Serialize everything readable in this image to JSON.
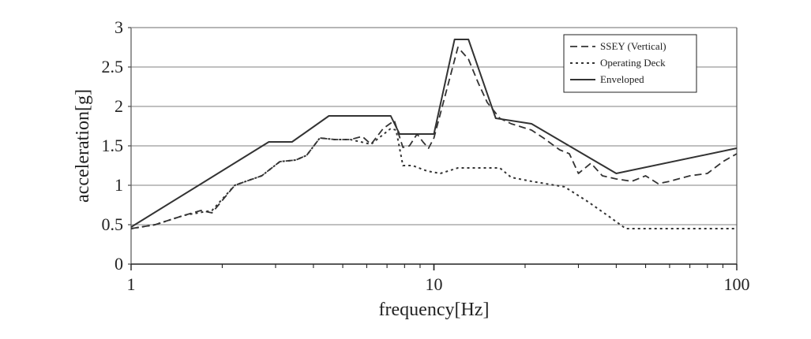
{
  "chart_data": {
    "type": "line",
    "xlabel": "frequency[Hz]",
    "ylabel": "acceleration[g]",
    "x_scale": "log",
    "xlim": [
      1,
      100
    ],
    "ylim": [
      0,
      3
    ],
    "x_ticks": [
      "1",
      "10",
      "100"
    ],
    "y_ticks": [
      "0",
      "0.5",
      "1",
      "1.5",
      "2",
      "2.5",
      "3"
    ],
    "grid": "horizontal",
    "legend_position": "top-right",
    "series": [
      {
        "name": "SSEY (Vertical)",
        "style": "dashed",
        "x": [
          1,
          1.2,
          1.5,
          1.7,
          1.85,
          2.2,
          2.7,
          3.1,
          3.5,
          3.8,
          4.2,
          4.7,
          5.3,
          5.8,
          6.2,
          6.8,
          7.4,
          7.9,
          8.3,
          8.8,
          9.2,
          9.6,
          10,
          11,
          12,
          13,
          14,
          15,
          16.5,
          18,
          21,
          23,
          26,
          28,
          30,
          33,
          36,
          40,
          45,
          50,
          55,
          60,
          70,
          80,
          90,
          100
        ],
        "y": [
          0.45,
          0.5,
          0.62,
          0.68,
          0.65,
          1.0,
          1.12,
          1.3,
          1.32,
          1.38,
          1.6,
          1.58,
          1.58,
          1.62,
          1.52,
          1.72,
          1.82,
          1.48,
          1.5,
          1.65,
          1.55,
          1.47,
          1.6,
          2.2,
          2.75,
          2.6,
          2.3,
          2.05,
          1.85,
          1.78,
          1.7,
          1.6,
          1.45,
          1.4,
          1.15,
          1.28,
          1.12,
          1.08,
          1.05,
          1.12,
          1.02,
          1.05,
          1.12,
          1.15,
          1.3,
          1.4
        ]
      },
      {
        "name": "Operating Deck",
        "style": "dotted",
        "x": [
          1,
          1.2,
          1.5,
          1.85,
          2.2,
          2.7,
          3.1,
          3.5,
          3.8,
          4.2,
          4.7,
          5.3,
          6.2,
          7.2,
          7.5,
          7.9,
          8.5,
          9.5,
          10.5,
          12,
          14,
          16.5,
          18,
          21,
          27,
          32,
          38,
          43,
          50,
          70,
          100
        ],
        "y": [
          0.45,
          0.5,
          0.62,
          0.68,
          1.0,
          1.12,
          1.3,
          1.32,
          1.38,
          1.6,
          1.58,
          1.58,
          1.52,
          1.72,
          1.7,
          1.25,
          1.25,
          1.18,
          1.15,
          1.22,
          1.22,
          1.22,
          1.1,
          1.05,
          0.98,
          0.8,
          0.6,
          0.45,
          0.45,
          0.45,
          0.45
        ]
      },
      {
        "name": "Enveloped",
        "style": "solid",
        "x": [
          1,
          2.85,
          3.4,
          4.5,
          7.2,
          7.7,
          10,
          11.7,
          13,
          16,
          21,
          40,
          100
        ],
        "y": [
          0.47,
          1.55,
          1.55,
          1.88,
          1.88,
          1.65,
          1.65,
          2.85,
          2.85,
          1.85,
          1.78,
          1.15,
          1.47
        ]
      }
    ]
  }
}
